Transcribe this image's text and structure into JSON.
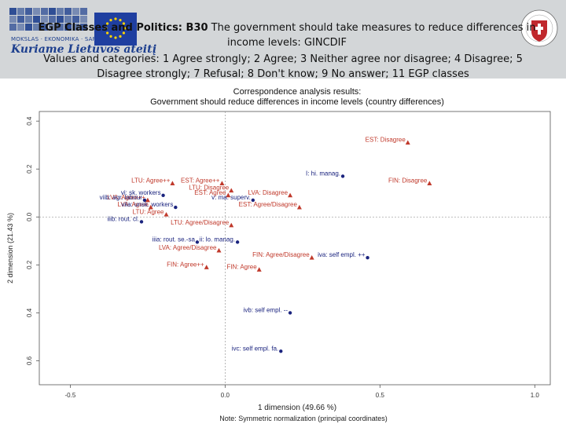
{
  "header": {
    "logo_text": "MOKSLAS · EKONOMIKA · SARGYBA",
    "logo_slogan": "Kuriame Lietuvos ateitį",
    "title_bold": "EGP Classes and Politics: B30",
    "title_rest": " The government should take measures to reduce differences in income levels: ",
    "title_code": "GINCDIF",
    "subtitle": "Values and categories: 1 Agree strongly; 2 Agree; 3 Neither agree nor disagree; 4 Disagree; 5 Disagree strongly; 7 Refusal; 8 Don't know; 9 No answer; 11 EGP classes",
    "colors": {
      "header_bg": "#d3d6d8",
      "logo_blue": "#1d3f8e",
      "seal_red": "#c0282d"
    }
  },
  "chart_data": {
    "type": "scatter",
    "title": "Correspondence analysis results:",
    "subtitle": "Government should reduce differences in income levels (country differences)",
    "xlabel": "1 dimension (49.66 %)",
    "ylabel": "2 dimension (21.43 %)",
    "note": "Note: Symmetric normalization (principal coordinates)",
    "xlim": [
      -0.6,
      1.05
    ],
    "ylim": [
      -0.7,
      0.44
    ],
    "x_ticks": [
      {
        "v": -0.5,
        "label": "-0.5"
      },
      {
        "v": 0.0,
        "label": "0.0"
      },
      {
        "v": 0.5,
        "label": "0.5"
      },
      {
        "v": 1.0,
        "label": "1.0"
      }
    ],
    "y_ticks": [
      {
        "v": 0.4,
        "label": "0.4"
      },
      {
        "v": 0.2,
        "label": "0.2"
      },
      {
        "v": 0.0,
        "label": "0.0"
      },
      {
        "v": -0.2,
        "label": "0.2"
      },
      {
        "v": -0.4,
        "label": "0.4"
      },
      {
        "v": -0.6,
        "label": "0.6"
      }
    ],
    "series": [
      {
        "name": "Country response categories",
        "marker": "triangle",
        "color": "#c0392b",
        "points": [
          {
            "label": "EST: Disagree",
            "x": 0.59,
            "y": 0.31
          },
          {
            "label": "FIN: Disagree",
            "x": 0.66,
            "y": 0.14
          },
          {
            "label": "LTU: Agree++",
            "x": -0.17,
            "y": 0.14
          },
          {
            "label": "EST: Agree++",
            "x": -0.01,
            "y": 0.14
          },
          {
            "label": "LTU: Disagree",
            "x": 0.02,
            "y": 0.11
          },
          {
            "label": "EST: Agree",
            "x": 0.01,
            "y": 0.09
          },
          {
            "label": "LVA: Disagree",
            "x": 0.21,
            "y": 0.09
          },
          {
            "label": "LVA: Agree",
            "x": -0.24,
            "y": 0.04
          },
          {
            "label": "EST: Agree/Disagree",
            "x": 0.24,
            "y": 0.04
          },
          {
            "label": "LTU: Agree",
            "x": -0.19,
            "y": 0.01
          },
          {
            "label": "LTU: Agree/Disagree",
            "x": 0.02,
            "y": -0.035
          },
          {
            "label": "LVA: Agree/Disagree",
            "x": -0.02,
            "y": -0.14
          },
          {
            "label": "FIN: Agree/Disagree",
            "x": 0.28,
            "y": -0.17
          },
          {
            "label": "FIN: Agree++",
            "x": -0.06,
            "y": -0.21
          },
          {
            "label": "FIN: Agree",
            "x": 0.11,
            "y": -0.22
          },
          {
            "label": "LVA: Agree++",
            "x": -0.25,
            "y": 0.07
          }
        ]
      },
      {
        "name": "EGP classes",
        "marker": "circle",
        "color": "#1a237e",
        "points": [
          {
            "label": "I: hi. manag.",
            "x": 0.38,
            "y": 0.17
          },
          {
            "label": "vi: sk. workers",
            "x": -0.2,
            "y": 0.09
          },
          {
            "label": "v: ma. superv.",
            "x": 0.09,
            "y": 0.07
          },
          {
            "label": "viib: agr. labour",
            "x": -0.26,
            "y": 0.07
          },
          {
            "label": "viia: unsk. workers",
            "x": -0.16,
            "y": 0.04
          },
          {
            "label": "iiib: rout. cl.",
            "x": -0.27,
            "y": -0.02
          },
          {
            "label": "iiia: rout. se.-sa",
            "x": -0.09,
            "y": -0.105
          },
          {
            "label": "ii: lo. manag.",
            "x": 0.04,
            "y": -0.105
          },
          {
            "label": "iva: self empl. ++",
            "x": 0.46,
            "y": -0.17
          },
          {
            "label": "ivb: self empl. --",
            "x": 0.21,
            "y": -0.4
          },
          {
            "label": "ivc: self empl. fa.",
            "x": 0.18,
            "y": -0.56
          }
        ]
      }
    ]
  }
}
